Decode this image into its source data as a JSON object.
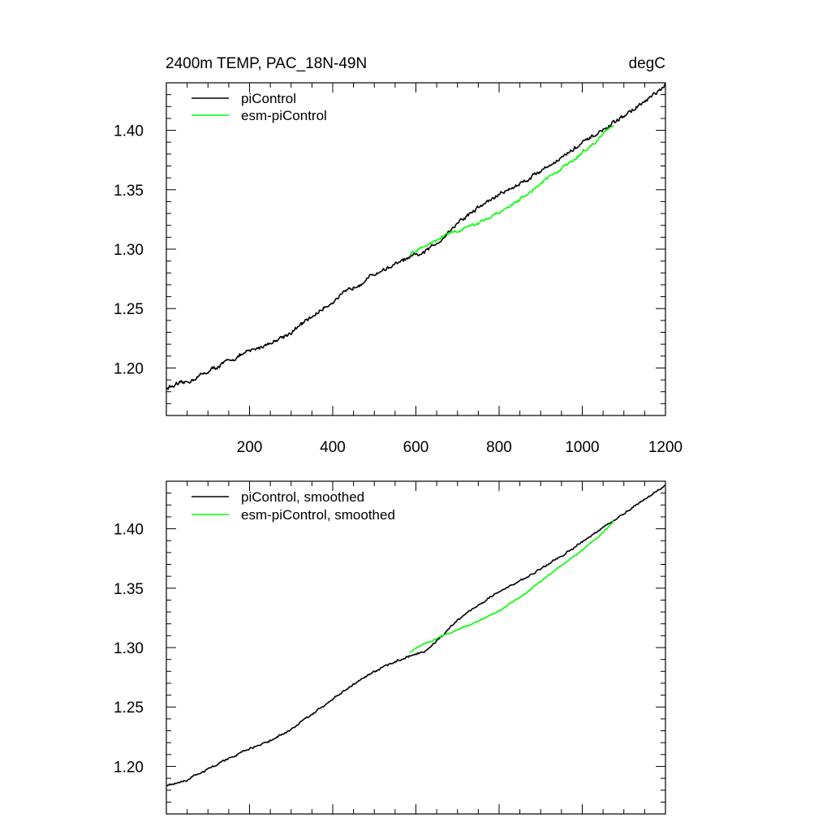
{
  "chart_data": [
    {
      "type": "line",
      "title": "2400m TEMP, PAC_18N-49N",
      "units": "degC",
      "xlim": [
        0,
        1200
      ],
      "ylim": [
        1.16,
        1.44
      ],
      "xticks": [
        200,
        400,
        600,
        800,
        1000,
        1200
      ],
      "yticks": [
        1.2,
        1.25,
        1.3,
        1.35,
        1.4
      ],
      "ytick_labels": [
        "1.20",
        "1.25",
        "1.30",
        "1.35",
        "1.40"
      ],
      "xtick_labels": [
        "200",
        "400",
        "600",
        "800",
        "1000",
        "1200"
      ],
      "legend_position": "top-left",
      "series": [
        {
          "name": "piControl",
          "color": "#000000",
          "noise": 0.0025,
          "x": [
            0,
            50,
            100,
            150,
            200,
            250,
            300,
            350,
            400,
            450,
            500,
            550,
            580,
            620,
            660,
            700,
            750,
            800,
            850,
            900,
            950,
            1000,
            1050,
            1100,
            1150,
            1200
          ],
          "y": [
            1.183,
            1.188,
            1.197,
            1.206,
            1.214,
            1.221,
            1.23,
            1.243,
            1.256,
            1.268,
            1.279,
            1.287,
            1.292,
            1.297,
            1.308,
            1.322,
            1.335,
            1.346,
            1.355,
            1.366,
            1.377,
            1.389,
            1.4,
            1.412,
            1.424,
            1.437
          ]
        },
        {
          "name": "esm-piControl",
          "color": "#00ff00",
          "noise": 0.0018,
          "x": [
            585,
            620,
            660,
            700,
            750,
            800,
            850,
            900,
            950,
            1000,
            1050,
            1075
          ],
          "y": [
            1.296,
            1.303,
            1.31,
            1.315,
            1.322,
            1.331,
            1.342,
            1.355,
            1.368,
            1.381,
            1.396,
            1.405
          ]
        }
      ]
    },
    {
      "type": "line",
      "title": "",
      "units": "",
      "xlim": [
        0,
        1200
      ],
      "ylim": [
        1.16,
        1.44
      ],
      "xticks": [
        200,
        400,
        600,
        800,
        1000,
        1200
      ],
      "yticks": [
        1.2,
        1.25,
        1.3,
        1.35,
        1.4
      ],
      "ytick_labels": [
        "1.20",
        "1.25",
        "1.30",
        "1.35",
        "1.40"
      ],
      "xtick_labels": [],
      "legend_position": "top-left",
      "series": [
        {
          "name": "piControl, smoothed",
          "color": "#000000",
          "noise": 0.0012,
          "x": [
            0,
            50,
            100,
            150,
            200,
            250,
            300,
            350,
            400,
            450,
            500,
            550,
            580,
            620,
            660,
            700,
            750,
            800,
            850,
            900,
            950,
            1000,
            1050,
            1100,
            1150,
            1200
          ],
          "y": [
            1.184,
            1.189,
            1.198,
            1.207,
            1.215,
            1.222,
            1.231,
            1.244,
            1.257,
            1.269,
            1.28,
            1.288,
            1.292,
            1.297,
            1.309,
            1.323,
            1.336,
            1.347,
            1.356,
            1.366,
            1.377,
            1.389,
            1.401,
            1.413,
            1.425,
            1.437
          ]
        },
        {
          "name": "esm-piControl, smoothed",
          "color": "#00ff00",
          "noise": 0.0008,
          "x": [
            585,
            620,
            660,
            700,
            750,
            800,
            850,
            900,
            950,
            1000,
            1050,
            1075
          ],
          "y": [
            1.296,
            1.303,
            1.309,
            1.315,
            1.322,
            1.331,
            1.342,
            1.356,
            1.369,
            1.382,
            1.397,
            1.406
          ]
        }
      ]
    }
  ]
}
